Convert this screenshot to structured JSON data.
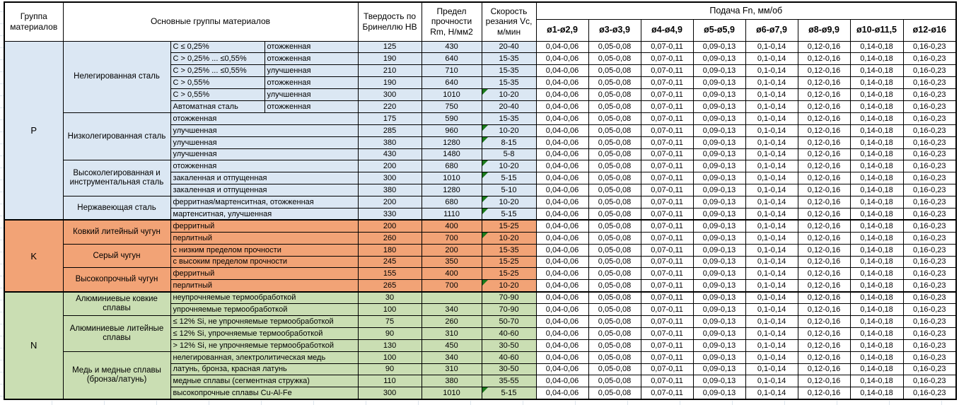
{
  "header": {
    "group_col": "Группа материалов",
    "main_col": "Основные группы материалов",
    "hb_col": "Твердость по Бринеллю HB",
    "rm_col": "Предел прочности Rm, Н/мм2",
    "vc_col": "Скорость резания Vc, м/мин",
    "feed_col": "Подача Fn, мм/об",
    "diameters": [
      "ø1-ø2,9",
      "ø3-ø3,9",
      "ø4-ø4,9",
      "ø5-ø5,9",
      "ø6-ø7,9",
      "ø8-ø9,9",
      "ø10-ø11,5",
      "ø12-ø16"
    ]
  },
  "feeds": [
    "0,04-0,06",
    "0,05-0,08",
    "0,07-0,11",
    "0,09-0,13",
    "0,1-0,14",
    "0,12-0,16",
    "0,14-0,18",
    "0,16-0,23"
  ],
  "colors": {
    "steel_blue": "#DBE7F3",
    "cast_iron_orange": "#F2A376",
    "nonferrous_green": "#CADEB3",
    "marker_green": "#1B7A1B",
    "border": "#000000"
  },
  "groups": [
    {
      "letter": "P",
      "color": "#DBE7F3",
      "families": [
        {
          "name": "Нелегированная сталь",
          "rows": [
            {
              "s1": "C ≤ 0,25%",
              "s2": "отожженная",
              "hb": "125",
              "rm": "430",
              "vc": "20-40"
            },
            {
              "s1": "C > 0,25% ... ≤0,55%",
              "s2": "отожженная",
              "hb": "190",
              "rm": "640",
              "vc": "15-35"
            },
            {
              "s1": "C > 0,25% ... ≤0,55%",
              "s2": "улучшенная",
              "hb": "210",
              "rm": "710",
              "vc": "15-35"
            },
            {
              "s1": "C > 0,55%",
              "s2": "отожженная",
              "hb": "190",
              "rm": "640",
              "vc": "15-35"
            },
            {
              "s1": "C > 0,55%",
              "s2": "улучшенная",
              "hb": "300",
              "rm": "1010",
              "vc": "10-20",
              "m": true
            },
            {
              "s1": "Автоматная сталь",
              "s2": "отожженная",
              "hb": "220",
              "rm": "750",
              "vc": "20-40"
            }
          ]
        },
        {
          "name": "Низколегированная сталь",
          "rows": [
            {
              "d": "отожженная",
              "hb": "175",
              "rm": "590",
              "vc": "15-35"
            },
            {
              "d": "улучшенная",
              "hb": "285",
              "rm": "960",
              "vc": "10-20",
              "m": true
            },
            {
              "d": "улучшенная",
              "hb": "380",
              "rm": "1280",
              "vc": "8-15",
              "m": true
            },
            {
              "d": "улучшенная",
              "hb": "430",
              "rm": "1480",
              "vc": "5-8"
            }
          ]
        },
        {
          "name": "Высоколегированная и инструментальная сталь",
          "rows": [
            {
              "d": "отожженная",
              "hb": "200",
              "rm": "680",
              "vc": "10-20",
              "m": true
            },
            {
              "d": "закаленная и отпущенная",
              "hb": "300",
              "rm": "1010",
              "vc": "5-15",
              "m": true
            },
            {
              "d": "закаленная и отпущенная",
              "hb": "380",
              "rm": "1280",
              "vc": "5-10"
            }
          ]
        },
        {
          "name": "Нержавеющая сталь",
          "rows": [
            {
              "d": "ферритная/мартенситная, отожженная",
              "hb": "200",
              "rm": "680",
              "vc": "10-20",
              "m": true
            },
            {
              "d": "мартенситная, улучшенная",
              "hb": "330",
              "rm": "1110",
              "vc": "5-15",
              "m": true
            }
          ]
        }
      ]
    },
    {
      "letter": "K",
      "color": "#F2A376",
      "families": [
        {
          "name": "Ковкий литейный чугун",
          "rows": [
            {
              "d": "ферритный",
              "hb": "200",
              "rm": "400",
              "vc": "15-25"
            },
            {
              "d": "перлитный",
              "hb": "260",
              "rm": "700",
              "vc": "10-20",
              "m": true
            }
          ]
        },
        {
          "name": "Серый чугун",
          "rows": [
            {
              "d": "с низким пределом прочности",
              "hb": "180",
              "rm": "200",
              "vc": "15-35"
            },
            {
              "d": "с высоким пределом прочности",
              "hb": "245",
              "rm": "350",
              "vc": "15-25"
            }
          ]
        },
        {
          "name": "Высокопрочный чугун",
          "rows": [
            {
              "d": "ферритный",
              "hb": "155",
              "rm": "400",
              "vc": "15-25"
            },
            {
              "d": "перлитный",
              "hb": "265",
              "rm": "700",
              "vc": "10-20",
              "m": true
            }
          ]
        }
      ]
    },
    {
      "letter": "N",
      "color": "#CADEB3",
      "families": [
        {
          "name": "Алюминиевые ковкие сплавы",
          "rows": [
            {
              "d": "неупрочняемые термообработкой",
              "hb": "30",
              "rm": "",
              "vc": "70-90"
            },
            {
              "d": "упрочняемые термообработкой",
              "hb": "100",
              "rm": "340",
              "vc": "70-90"
            }
          ]
        },
        {
          "name": "Алюминиевые литейные сплавы",
          "rows": [
            {
              "d": "≤ 12% Si, не упрочняемые термообработкой",
              "hb": "75",
              "rm": "260",
              "vc": "50-70"
            },
            {
              "d": "≤ 12% Si, упрочняемые термообработкой",
              "hb": "90",
              "rm": "310",
              "vc": "40-60"
            },
            {
              "d": "> 12% Si, не упрочняемые термообработкой",
              "hb": "130",
              "rm": "450",
              "vc": "30-50"
            }
          ]
        },
        {
          "name": "Медь и медные сплавы (бронза/латунь)",
          "rows": [
            {
              "d": "нелегированная, электролитическая медь",
              "hb": "100",
              "rm": "340",
              "vc": "40-60"
            },
            {
              "d": "латунь, бронза, красная латунь",
              "hb": "90",
              "rm": "310",
              "vc": "30-50"
            },
            {
              "d": "медные сплавы (сегментная стружка)",
              "hb": "110",
              "rm": "380",
              "vc": "35-55"
            },
            {
              "d": "высокопрочные сплавы Cu-Al-Fe",
              "hb": "300",
              "rm": "1010",
              "vc": "5-15",
              "m": true
            }
          ]
        }
      ]
    }
  ]
}
